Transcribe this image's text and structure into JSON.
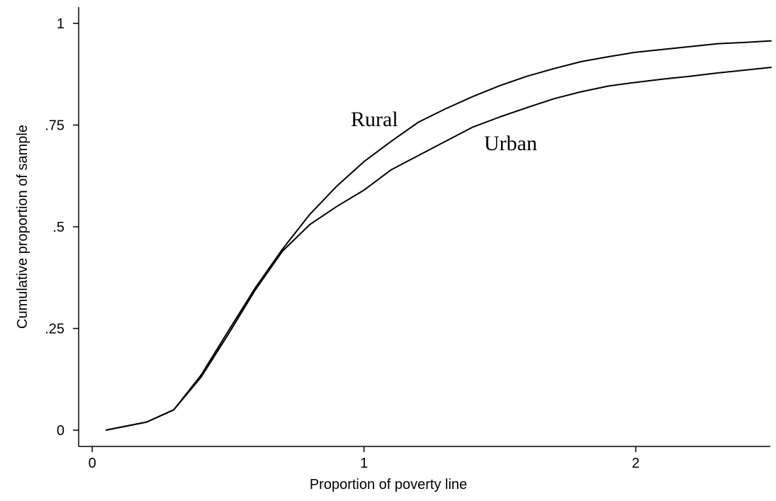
{
  "chart_data": {
    "type": "line",
    "x_label": "Proportion of poverty line",
    "y_label": "Cumulative proportion of sample",
    "x": [
      0.05,
      0.2,
      0.3,
      0.4,
      0.5,
      0.6,
      0.7,
      0.8,
      0.9,
      1.0,
      1.1,
      1.2,
      1.3,
      1.4,
      1.5,
      1.6,
      1.7,
      1.8,
      1.9,
      2.0,
      2.1,
      2.2,
      2.3,
      2.4,
      2.5
    ],
    "series": [
      {
        "name": "Rural",
        "color": "#000000",
        "values": [
          0,
          0.02,
          0.05,
          0.135,
          0.243,
          0.35,
          0.445,
          0.53,
          0.6,
          0.66,
          0.71,
          0.757,
          0.79,
          0.82,
          0.847,
          0.87,
          0.889,
          0.906,
          0.918,
          0.929,
          0.936,
          0.943,
          0.95,
          0.953,
          0.957
        ]
      },
      {
        "name": "Urban",
        "color": "#000000",
        "values": [
          0,
          0.02,
          0.05,
          0.13,
          0.235,
          0.345,
          0.44,
          0.505,
          0.55,
          0.59,
          0.64,
          0.675,
          0.71,
          0.745,
          0.77,
          0.793,
          0.815,
          0.832,
          0.846,
          0.855,
          0.863,
          0.87,
          0.878,
          0.885,
          0.892
        ]
      }
    ],
    "xlim": [
      -0.05,
      2.49
    ],
    "xticks": [
      0,
      1,
      2
    ],
    "ylim": [
      -0.04,
      1.04
    ],
    "yticks": [
      0,
      {
        "value": 0.25,
        "label": ".25"
      },
      {
        "value": 0.5,
        "label": ".5"
      },
      {
        "value": 0.75,
        "label": ".75"
      },
      1
    ],
    "grid": false
  }
}
